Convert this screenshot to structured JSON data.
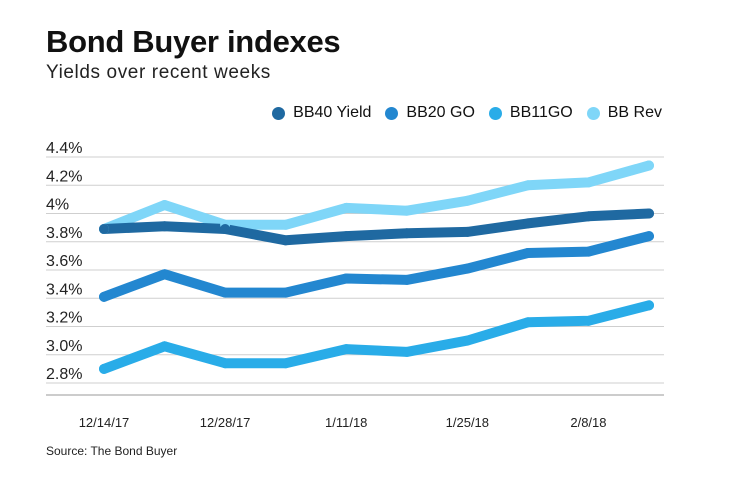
{
  "title": "Bond Buyer indexes",
  "subtitle": "Yields over recent weeks",
  "source": "Source: The Bond Buyer",
  "chart_data": {
    "type": "line",
    "title": "Bond Buyer indexes",
    "subtitle": "Yields over recent weeks",
    "xlabel": "",
    "ylabel": "",
    "x_tick_labels": [
      "12/14/17",
      "12/28/17",
      "1/11/18",
      "1/25/18",
      "2/8/18"
    ],
    "y_tick_labels": [
      "2.8%",
      "3.0%",
      "3.2%",
      "3.4%",
      "3.6%",
      "3.8%",
      "4%",
      "4.2%",
      "4.4%"
    ],
    "ylim": [
      2.8,
      4.4
    ],
    "grid": "horizontal",
    "legend_position": "top-right",
    "x": [
      "12/14/17",
      "12/21/17",
      "12/28/17",
      "1/4/18",
      "1/11/18",
      "1/18/18",
      "1/25/18",
      "2/1/18",
      "2/8/18",
      "2/15/18"
    ],
    "series": [
      {
        "name": "BB40 Yield",
        "color": "#1f69a1",
        "values": [
          3.89,
          3.91,
          3.89,
          3.81,
          3.84,
          3.86,
          3.87,
          3.93,
          3.98,
          4.0
        ]
      },
      {
        "name": "BB20 GO",
        "color": "#2387d0",
        "values": [
          3.41,
          3.57,
          3.44,
          3.44,
          3.54,
          3.53,
          3.61,
          3.72,
          3.73,
          3.84
        ]
      },
      {
        "name": "BB11GO",
        "color": "#29ace8",
        "values": [
          2.9,
          3.06,
          2.94,
          2.94,
          3.04,
          3.02,
          3.1,
          3.23,
          3.24,
          3.35
        ]
      },
      {
        "name": "BB Rev",
        "color": "#7fd6f8",
        "values": [
          3.89,
          4.06,
          3.92,
          3.92,
          4.04,
          4.02,
          4.09,
          4.2,
          4.22,
          4.34
        ]
      }
    ]
  }
}
